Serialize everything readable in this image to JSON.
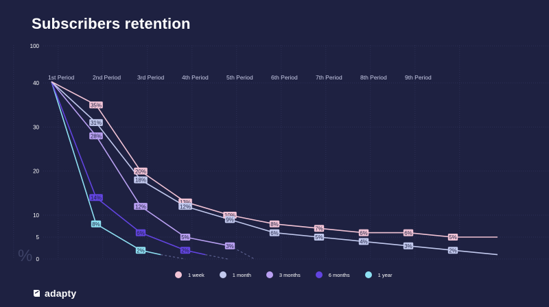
{
  "page_title": "Subscribers retention",
  "brand": {
    "name": "adapty",
    "icon": "adapty-logo-icon"
  },
  "chart_data": {
    "type": "line",
    "title": "Subscribers retention",
    "ylabel": "%",
    "xlabel": "",
    "y_ticks": [
      0,
      5,
      10,
      20,
      30,
      40,
      100
    ],
    "x_categories": [
      "1st Period",
      "2nd Period",
      "3rd Period",
      "4th Period",
      "5th Period",
      "6th Period",
      "7th Period",
      "8th Period",
      "9th Period"
    ],
    "grid": true,
    "legend_position": "bottom",
    "series": [
      {
        "name": "1 week",
        "color": "#f2c4d6",
        "points": [
          [
            0,
            42
          ],
          [
            1,
            35
          ],
          [
            2,
            20
          ],
          [
            3,
            13
          ],
          [
            4,
            10
          ],
          [
            5,
            8
          ],
          [
            6,
            7
          ],
          [
            7,
            6
          ],
          [
            8,
            6
          ],
          [
            9,
            5
          ],
          [
            10,
            5
          ]
        ],
        "labels": [
          [
            1,
            "35%"
          ],
          [
            2,
            "20%"
          ],
          [
            3,
            "13%"
          ],
          [
            4,
            "10%"
          ],
          [
            5,
            "8%"
          ],
          [
            6,
            "7%"
          ],
          [
            7,
            "6%"
          ],
          [
            8,
            "6%"
          ],
          [
            9,
            "5%"
          ]
        ]
      },
      {
        "name": "1 month",
        "color": "#c2c9ee",
        "points": [
          [
            0,
            42
          ],
          [
            1,
            31
          ],
          [
            2,
            18
          ],
          [
            3,
            12
          ],
          [
            4,
            9
          ],
          [
            5,
            6
          ],
          [
            6,
            5
          ],
          [
            7,
            4
          ],
          [
            8,
            3
          ],
          [
            9,
            2
          ],
          [
            10,
            1
          ]
        ],
        "labels": [
          [
            1,
            "31%"
          ],
          [
            2,
            "18%"
          ],
          [
            3,
            "12%"
          ],
          [
            4,
            "9%"
          ],
          [
            5,
            "6%"
          ],
          [
            6,
            "5%"
          ],
          [
            7,
            "4%"
          ],
          [
            8,
            "3%"
          ],
          [
            9,
            "2%"
          ]
        ]
      },
      {
        "name": "3 months",
        "color": "#b9a0f2",
        "points": [
          [
            0,
            42
          ],
          [
            1,
            28
          ],
          [
            2,
            12
          ],
          [
            3,
            5
          ],
          [
            4,
            3
          ]
        ],
        "labels": [
          [
            1,
            "28%"
          ],
          [
            2,
            "12%"
          ],
          [
            3,
            "5%"
          ],
          [
            4,
            "3%"
          ]
        ],
        "projected": [
          [
            4,
            3
          ],
          [
            4.55,
            0
          ]
        ]
      },
      {
        "name": "6 months",
        "color": "#6244e0",
        "points": [
          [
            0,
            42
          ],
          [
            1,
            14
          ],
          [
            2,
            6
          ],
          [
            3,
            2
          ],
          [
            3.45,
            1
          ]
        ],
        "labels": [
          [
            1,
            "14%"
          ],
          [
            2,
            "6%"
          ],
          [
            3,
            "2%"
          ]
        ],
        "projected": [
          [
            3.45,
            1
          ],
          [
            3.95,
            0
          ]
        ]
      },
      {
        "name": "1 year",
        "color": "#8ee0f2",
        "points": [
          [
            0,
            42
          ],
          [
            1,
            8
          ],
          [
            2,
            2
          ],
          [
            2.45,
            1
          ]
        ],
        "labels": [
          [
            1,
            "8%"
          ],
          [
            2,
            "2%"
          ]
        ],
        "projected": [
          [
            2.45,
            1
          ],
          [
            3,
            0
          ]
        ]
      }
    ]
  }
}
